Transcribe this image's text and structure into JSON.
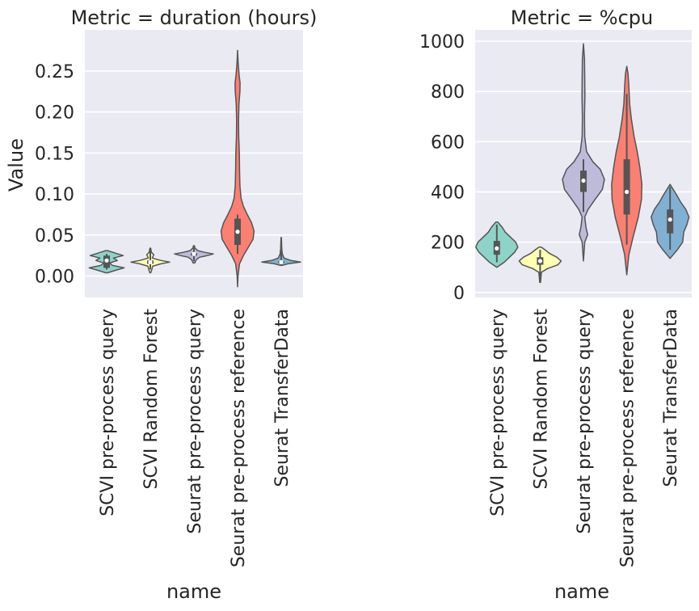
{
  "chart_data": [
    {
      "type": "violin",
      "title": "Metric = duration (hours)",
      "xlabel": "name",
      "ylabel": "Value",
      "ylim": [
        -0.026,
        0.3
      ],
      "yticks": [
        0.0,
        0.05,
        0.1,
        0.15,
        0.2,
        0.25
      ],
      "ytick_labels": [
        "0.00",
        "0.05",
        "0.10",
        "0.15",
        "0.20",
        "0.25"
      ],
      "grid": true,
      "categories": [
        "SCVI pre-process query",
        "SCVI Random Forest",
        "Seurat pre-process query",
        "Seurat pre-process reference",
        "Seurat TransferData"
      ],
      "series": [
        {
          "color": "#8dd3c7",
          "profile": [
            [
              0.004,
              0.05
            ],
            [
              0.007,
              0.45
            ],
            [
              0.01,
              0.9
            ],
            [
              0.013,
              0.3
            ],
            [
              0.016,
              0.15
            ],
            [
              0.019,
              0.55
            ],
            [
              0.022,
              0.35
            ],
            [
              0.025,
              0.85
            ],
            [
              0.028,
              0.45
            ],
            [
              0.031,
              0.05
            ]
          ],
          "q1": 0.01,
          "median": 0.019,
          "q3": 0.025,
          "whisker": [
            0.008,
            0.027
          ]
        },
        {
          "color": "#ffffb3",
          "profile": [
            [
              0.004,
              0.02
            ],
            [
              0.008,
              0.08
            ],
            [
              0.012,
              0.12
            ],
            [
              0.015,
              0.55
            ],
            [
              0.017,
              1.0
            ],
            [
              0.019,
              0.55
            ],
            [
              0.022,
              0.1
            ],
            [
              0.026,
              0.18
            ],
            [
              0.029,
              0.06
            ],
            [
              0.034,
              0.02
            ]
          ],
          "q1": 0.015,
          "median": 0.017,
          "q3": 0.019,
          "whisker": [
            0.008,
            0.034
          ]
        },
        {
          "color": "#bebada",
          "profile": [
            [
              0.016,
              0.04
            ],
            [
              0.02,
              0.12
            ],
            [
              0.023,
              0.3
            ],
            [
              0.025,
              0.7
            ],
            [
              0.027,
              1.0
            ],
            [
              0.029,
              0.55
            ],
            [
              0.031,
              0.2
            ],
            [
              0.034,
              0.06
            ],
            [
              0.037,
              0.02
            ]
          ],
          "q1": 0.025,
          "median": 0.027,
          "q3": 0.028,
          "whisker": [
            0.018,
            0.035
          ]
        },
        {
          "color": "#fb8072",
          "profile": [
            [
              -0.013,
              0.0
            ],
            [
              0.0,
              0.02
            ],
            [
              0.015,
              0.1
            ],
            [
              0.025,
              0.3
            ],
            [
              0.035,
              0.55
            ],
            [
              0.045,
              0.8
            ],
            [
              0.055,
              0.85
            ],
            [
              0.065,
              0.72
            ],
            [
              0.075,
              0.5
            ],
            [
              0.085,
              0.3
            ],
            [
              0.095,
              0.18
            ],
            [
              0.11,
              0.12
            ],
            [
              0.13,
              0.1
            ],
            [
              0.15,
              0.09
            ],
            [
              0.17,
              0.06
            ],
            [
              0.19,
              0.05
            ],
            [
              0.21,
              0.07
            ],
            [
              0.225,
              0.12
            ],
            [
              0.235,
              0.13
            ],
            [
              0.245,
              0.08
            ],
            [
              0.26,
              0.03
            ],
            [
              0.275,
              0.0
            ]
          ],
          "q1": 0.038,
          "median": 0.054,
          "q3": 0.07,
          "whisker": [
            0.027,
            0.075
          ]
        },
        {
          "color": "#80b1d3",
          "profile": [
            [
              0.013,
              0.04
            ],
            [
              0.015,
              0.35
            ],
            [
              0.017,
              1.0
            ],
            [
              0.019,
              0.5
            ],
            [
              0.022,
              0.15
            ],
            [
              0.027,
              0.06
            ],
            [
              0.033,
              0.03
            ],
            [
              0.04,
              0.02
            ],
            [
              0.047,
              0.01
            ]
          ],
          "q1": 0.016,
          "median": 0.017,
          "q3": 0.018,
          "whisker": [
            0.013,
            0.046
          ]
        }
      ]
    },
    {
      "type": "violin",
      "title": "Metric = %cpu",
      "xlabel": "name",
      "ylabel": "",
      "ylim": [
        -20,
        1045
      ],
      "yticks": [
        0,
        200,
        400,
        600,
        800,
        1000
      ],
      "ytick_labels": [
        "0",
        "200",
        "400",
        "600",
        "800",
        "1000"
      ],
      "grid": true,
      "categories": [
        "SCVI pre-process query",
        "SCVI Random Forest",
        "Seurat pre-process query",
        "Seurat pre-process reference",
        "Seurat TransferData"
      ],
      "series": [
        {
          "color": "#8dd3c7",
          "profile": [
            [
              100,
              0.0
            ],
            [
              120,
              0.35
            ],
            [
              140,
              0.6
            ],
            [
              160,
              0.85
            ],
            [
              180,
              1.0
            ],
            [
              200,
              0.9
            ],
            [
              220,
              0.65
            ],
            [
              240,
              0.4
            ],
            [
              260,
              0.25
            ],
            [
              280,
              0.05
            ]
          ],
          "q1": 150,
          "median": 175,
          "q3": 205,
          "whisker": [
            120,
            270
          ]
        },
        {
          "color": "#ffffb3",
          "profile": [
            [
              40,
              0.02
            ],
            [
              60,
              0.04
            ],
            [
              80,
              0.06
            ],
            [
              95,
              0.35
            ],
            [
              110,
              0.85
            ],
            [
              125,
              1.0
            ],
            [
              140,
              0.8
            ],
            [
              155,
              0.45
            ],
            [
              170,
              0.22
            ],
            [
              180,
              0.05
            ]
          ],
          "q1": 110,
          "median": 125,
          "q3": 140,
          "whisker": [
            45,
            170
          ]
        },
        {
          "color": "#bebada",
          "profile": [
            [
              125,
              0.0
            ],
            [
              200,
              0.06
            ],
            [
              230,
              0.2
            ],
            [
              260,
              0.12
            ],
            [
              300,
              0.06
            ],
            [
              330,
              0.22
            ],
            [
              370,
              0.55
            ],
            [
              410,
              0.9
            ],
            [
              450,
              1.0
            ],
            [
              490,
              0.8
            ],
            [
              520,
              0.45
            ],
            [
              560,
              0.15
            ],
            [
              620,
              0.06
            ],
            [
              700,
              0.05
            ],
            [
              780,
              0.07
            ],
            [
              850,
              0.06
            ],
            [
              930,
              0.05
            ],
            [
              990,
              0.0
            ]
          ],
          "q1": 400,
          "median": 445,
          "q3": 485,
          "whisker": [
            320,
            530
          ]
        },
        {
          "color": "#fb8072",
          "profile": [
            [
              70,
              0.0
            ],
            [
              150,
              0.1
            ],
            [
              220,
              0.3
            ],
            [
              300,
              0.55
            ],
            [
              370,
              0.7
            ],
            [
              430,
              0.72
            ],
            [
              500,
              0.62
            ],
            [
              560,
              0.5
            ],
            [
              620,
              0.35
            ],
            [
              690,
              0.22
            ],
            [
              750,
              0.14
            ],
            [
              820,
              0.1
            ],
            [
              870,
              0.06
            ],
            [
              900,
              0.0
            ]
          ],
          "q1": 310,
          "median": 400,
          "q3": 530,
          "whisker": [
            190,
            790
          ]
        },
        {
          "color": "#80b1d3",
          "profile": [
            [
              135,
              0.0
            ],
            [
              170,
              0.35
            ],
            [
              200,
              0.6
            ],
            [
              240,
              0.65
            ],
            [
              270,
              0.8
            ],
            [
              300,
              0.9
            ],
            [
              330,
              0.75
            ],
            [
              360,
              0.5
            ],
            [
              390,
              0.3
            ],
            [
              430,
              0.0
            ]
          ],
          "q1": 235,
          "median": 290,
          "q3": 330,
          "whisker": [
            170,
            420
          ]
        }
      ]
    }
  ]
}
